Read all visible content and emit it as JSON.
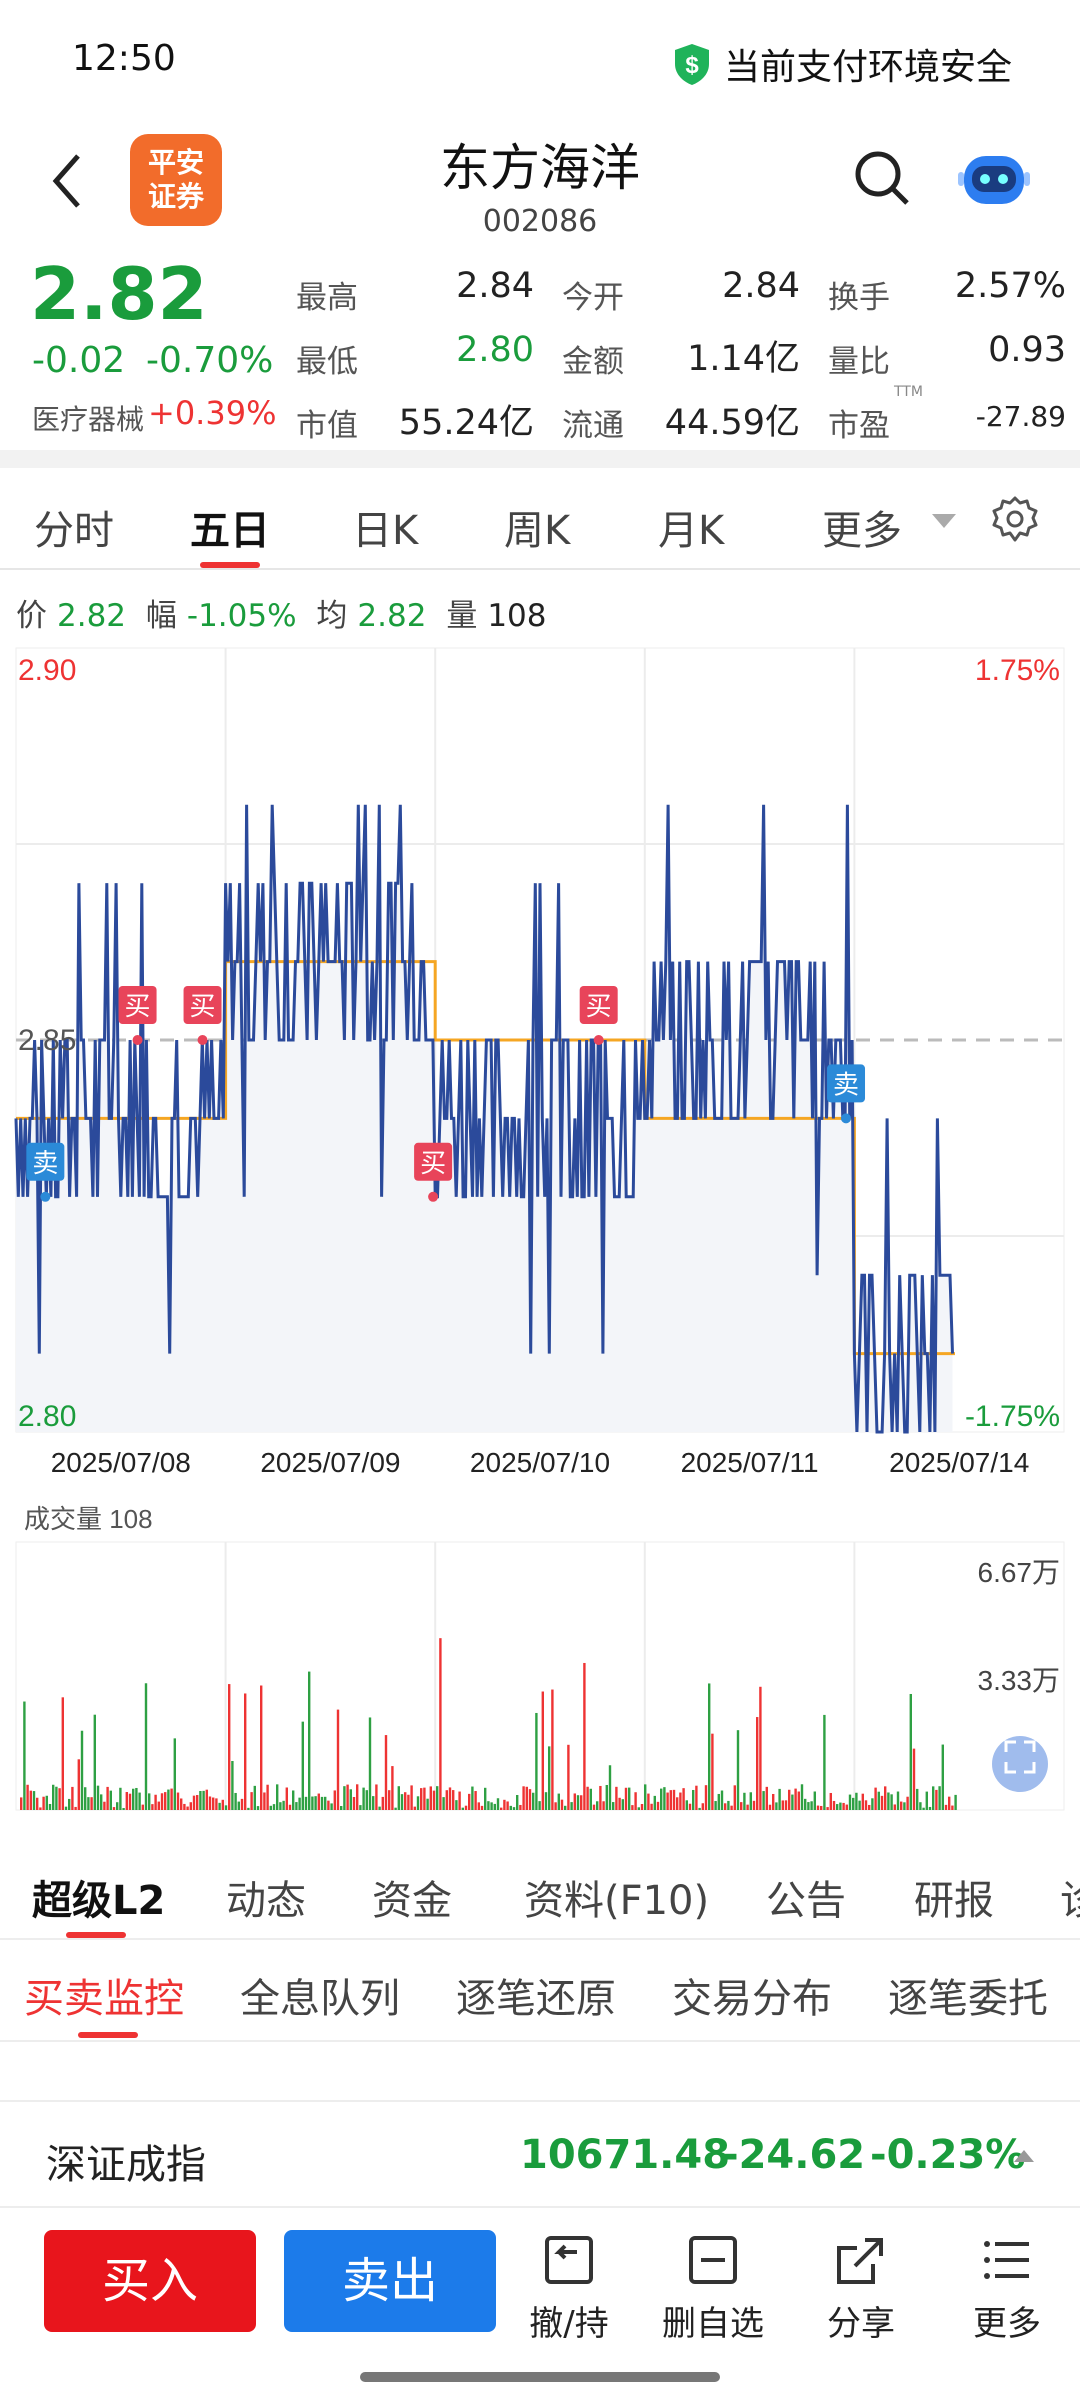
{
  "status": {
    "time": "12:50",
    "secure_text": "当前支付环境安全"
  },
  "header": {
    "logo_line1": "平安",
    "logo_line2": "证券",
    "name": "东方海洋",
    "code": "002086"
  },
  "quote": {
    "price": "2.82",
    "change": "-0.02",
    "change_pct": "-0.70%",
    "sector": "医疗器械",
    "sector_pct": "+0.39%",
    "fields": [
      {
        "label": "最高",
        "value": "2.84",
        "color": "#222222"
      },
      {
        "label": "今开",
        "value": "2.84",
        "color": "#222222"
      },
      {
        "label": "换手",
        "value": "2.57%",
        "color": "#222222"
      },
      {
        "label": "最低",
        "value": "2.80",
        "color": "#1a9c3c"
      },
      {
        "label": "金额",
        "value": "1.14亿",
        "color": "#222222"
      },
      {
        "label": "量比",
        "value": "0.93",
        "color": "#222222"
      },
      {
        "label": "市值",
        "value": "55.24亿",
        "color": "#222222"
      },
      {
        "label": "流通",
        "value": "44.59亿",
        "color": "#222222"
      },
      {
        "label": "市盈",
        "value": "-27.89",
        "color": "#222222"
      }
    ],
    "ttm": "TTM"
  },
  "tabs": [
    "分时",
    "五日",
    "日K",
    "周K",
    "月K",
    "更多"
  ],
  "info": {
    "price_label": "价",
    "price": "2.82",
    "amp_label": "幅",
    "amp": "-1.05%",
    "avg_label": "均",
    "avg": "2.82",
    "vol_label": "量",
    "vol": "108"
  },
  "chart_data": [
    {
      "type": "line",
      "title": "",
      "x": [
        "2025/07/08",
        "2025/07/09",
        "2025/07/10",
        "2025/07/11",
        "2025/07/14"
      ],
      "series": [
        {
          "values": [
            2.84,
            2.86,
            2.84,
            2.85,
            2.81
          ]
        },
        {
          "values": [
            2.84,
            2.86,
            2.85,
            2.84,
            2.81
          ]
        }
      ],
      "ylim": [
        2.8,
        2.9
      ],
      "y_ticks": [
        "2.90",
        "2.85",
        "2.80"
      ],
      "right_ticks": [
        "1.75%",
        "-1.75%"
      ],
      "markers": [
        "买",
        "买",
        "买",
        "买",
        "卖",
        "卖"
      ],
      "colors": {
        "price": "#2b4a9b",
        "avg": "#f5a623"
      }
    },
    {
      "type": "bar",
      "title": "成交量",
      "current_volume": "108",
      "y_ticks": [
        "6.67万",
        "3.33万"
      ],
      "ylim": [
        0,
        66700
      ]
    }
  ],
  "sub_tabs": [
    "超级L2",
    "动态",
    "资金",
    "资料(F10)",
    "公告",
    "研报",
    "诊"
  ],
  "sub2_tabs": [
    "买卖监控",
    "全息队列",
    "逐笔还原",
    "交易分布",
    "逐笔委托"
  ],
  "index": {
    "name": "深证成指",
    "value": "10671.48",
    "change": "-24.62",
    "pct": "-0.23%"
  },
  "bottom": {
    "buy": "买入",
    "sell": "卖出",
    "items": [
      "撤/持",
      "删自选",
      "分享",
      "更多"
    ]
  }
}
